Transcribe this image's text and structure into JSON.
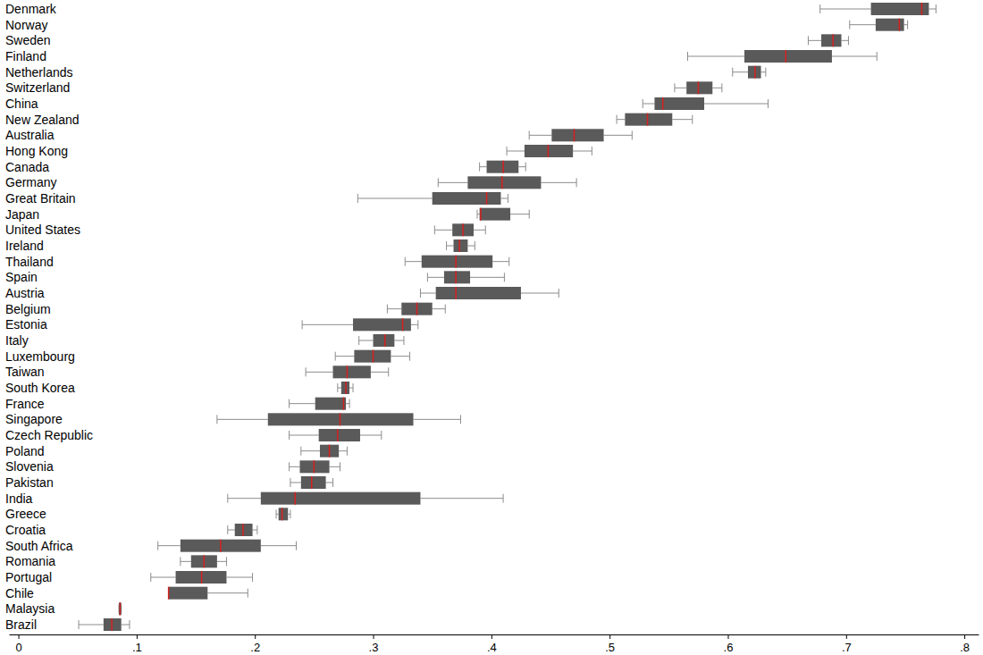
{
  "chart_data": {
    "type": "box",
    "orientation": "horizontal",
    "color": "#5a5a5a",
    "categories": [
      "Denmark",
      "Norway",
      "Sweden",
      "Finland",
      "Netherlands",
      "Switzerland",
      "China",
      "New Zealand",
      "Australia",
      "Hong Kong",
      "Canada",
      "Germany",
      "Great Britain",
      "Japan",
      "United States",
      "Ireland",
      "Thailand",
      "Spain",
      "Austria",
      "Belgium",
      "Estonia",
      "Italy",
      "Luxembourg",
      "Taiwan",
      "South Korea",
      "France",
      "Singapore",
      "Czech Republic",
      "Poland",
      "Slovenia",
      "Pakistan",
      "India",
      "Greece",
      "Croatia",
      "South Africa",
      "Romania",
      "Portugal",
      "Chile",
      "Malaysia",
      "Brazil"
    ],
    "boxes": [
      {
        "whislo": 0.678,
        "q1": 0.721,
        "med": 0.764,
        "q3": 0.77,
        "whishi": 0.776
      },
      {
        "whislo": 0.703,
        "q1": 0.725,
        "med": 0.745,
        "q3": 0.749,
        "whishi": 0.752
      },
      {
        "whislo": 0.668,
        "q1": 0.679,
        "med": 0.689,
        "q3": 0.696,
        "whishi": 0.702
      },
      {
        "whislo": 0.566,
        "q1": 0.614,
        "med": 0.649,
        "q3": 0.688,
        "whishi": 0.726
      },
      {
        "whislo": 0.604,
        "q1": 0.617,
        "med": 0.623,
        "q3": 0.628,
        "whishi": 0.632
      },
      {
        "whislo": 0.555,
        "q1": 0.565,
        "med": 0.575,
        "q3": 0.587,
        "whishi": 0.595
      },
      {
        "whislo": 0.528,
        "q1": 0.538,
        "med": 0.545,
        "q3": 0.58,
        "whishi": 0.634
      },
      {
        "whislo": 0.506,
        "q1": 0.513,
        "med": 0.532,
        "q3": 0.553,
        "whishi": 0.57
      },
      {
        "whislo": 0.432,
        "q1": 0.451,
        "med": 0.47,
        "q3": 0.495,
        "whishi": 0.519
      },
      {
        "whislo": 0.413,
        "q1": 0.428,
        "med": 0.448,
        "q3": 0.469,
        "whishi": 0.485
      },
      {
        "whislo": 0.39,
        "q1": 0.396,
        "med": 0.41,
        "q3": 0.423,
        "whishi": 0.429
      },
      {
        "whislo": 0.355,
        "q1": 0.38,
        "med": 0.409,
        "q3": 0.442,
        "whishi": 0.472
      },
      {
        "whislo": 0.287,
        "q1": 0.35,
        "med": 0.396,
        "q3": 0.408,
        "whishi": 0.414
      },
      {
        "whislo": 0.388,
        "q1": 0.39,
        "med": 0.391,
        "q3": 0.416,
        "whishi": 0.432
      },
      {
        "whislo": 0.352,
        "q1": 0.367,
        "med": 0.376,
        "q3": 0.385,
        "whishi": 0.395
      },
      {
        "whislo": 0.362,
        "q1": 0.368,
        "med": 0.373,
        "q3": 0.38,
        "whishi": 0.386
      },
      {
        "whislo": 0.327,
        "q1": 0.341,
        "med": 0.37,
        "q3": 0.401,
        "whishi": 0.415
      },
      {
        "whislo": 0.346,
        "q1": 0.36,
        "med": 0.37,
        "q3": 0.382,
        "whishi": 0.411
      },
      {
        "whislo": 0.34,
        "q1": 0.353,
        "med": 0.37,
        "q3": 0.425,
        "whishi": 0.457
      },
      {
        "whislo": 0.312,
        "q1": 0.324,
        "med": 0.337,
        "q3": 0.35,
        "whishi": 0.361
      },
      {
        "whislo": 0.24,
        "q1": 0.283,
        "med": 0.325,
        "q3": 0.332,
        "whishi": 0.338
      },
      {
        "whislo": 0.288,
        "q1": 0.3,
        "med": 0.31,
        "q3": 0.318,
        "whishi": 0.326
      },
      {
        "whislo": 0.268,
        "q1": 0.284,
        "med": 0.3,
        "q3": 0.315,
        "whishi": 0.331
      },
      {
        "whislo": 0.243,
        "q1": 0.266,
        "med": 0.278,
        "q3": 0.298,
        "whishi": 0.313
      },
      {
        "whislo": 0.27,
        "q1": 0.273,
        "med": 0.277,
        "q3": 0.28,
        "whishi": 0.283
      },
      {
        "whislo": 0.229,
        "q1": 0.251,
        "med": 0.275,
        "q3": 0.277,
        "whishi": 0.28
      },
      {
        "whislo": 0.168,
        "q1": 0.211,
        "med": 0.272,
        "q3": 0.334,
        "whishi": 0.374
      },
      {
        "whislo": 0.229,
        "q1": 0.254,
        "med": 0.27,
        "q3": 0.289,
        "whishi": 0.307
      },
      {
        "whislo": 0.239,
        "q1": 0.255,
        "med": 0.263,
        "q3": 0.271,
        "whishi": 0.278
      },
      {
        "whislo": 0.229,
        "q1": 0.238,
        "med": 0.25,
        "q3": 0.263,
        "whishi": 0.272
      },
      {
        "whislo": 0.23,
        "q1": 0.239,
        "med": 0.248,
        "q3": 0.26,
        "whishi": 0.266
      },
      {
        "whislo": 0.177,
        "q1": 0.205,
        "med": 0.234,
        "q3": 0.34,
        "whishi": 0.41
      },
      {
        "whislo": 0.218,
        "q1": 0.22,
        "med": 0.223,
        "q3": 0.228,
        "whishi": 0.23
      },
      {
        "whislo": 0.177,
        "q1": 0.183,
        "med": 0.19,
        "q3": 0.198,
        "whishi": 0.202
      },
      {
        "whislo": 0.118,
        "q1": 0.137,
        "med": 0.171,
        "q3": 0.205,
        "whishi": 0.235
      },
      {
        "whislo": 0.137,
        "q1": 0.146,
        "med": 0.157,
        "q3": 0.168,
        "whishi": 0.176
      },
      {
        "whislo": 0.112,
        "q1": 0.133,
        "med": 0.155,
        "q3": 0.176,
        "whishi": 0.198
      },
      {
        "whislo": 0.127,
        "q1": 0.127,
        "med": 0.127,
        "q3": 0.16,
        "whishi": 0.194
      },
      {
        "whislo": 0.085,
        "q1": 0.085,
        "med": 0.086,
        "q3": 0.087,
        "whishi": 0.087
      },
      {
        "whislo": 0.051,
        "q1": 0.072,
        "med": 0.079,
        "q3": 0.087,
        "whishi": 0.094
      }
    ],
    "xlim": [
      -0.008,
      0.812
    ],
    "xticks": [
      0,
      {
        "value": 0.1,
        "label": ".1"
      },
      {
        "value": 0.2,
        "label": ".2"
      },
      {
        "value": 0.3,
        "label": ".3"
      },
      {
        "value": 0.4,
        "label": ".4"
      },
      {
        "value": 0.5,
        "label": ".5"
      },
      {
        "value": 0.6,
        "label": ".6"
      },
      {
        "value": 0.7,
        "label": ".7"
      },
      {
        "value": 0.8,
        "label": ".8"
      }
    ]
  }
}
